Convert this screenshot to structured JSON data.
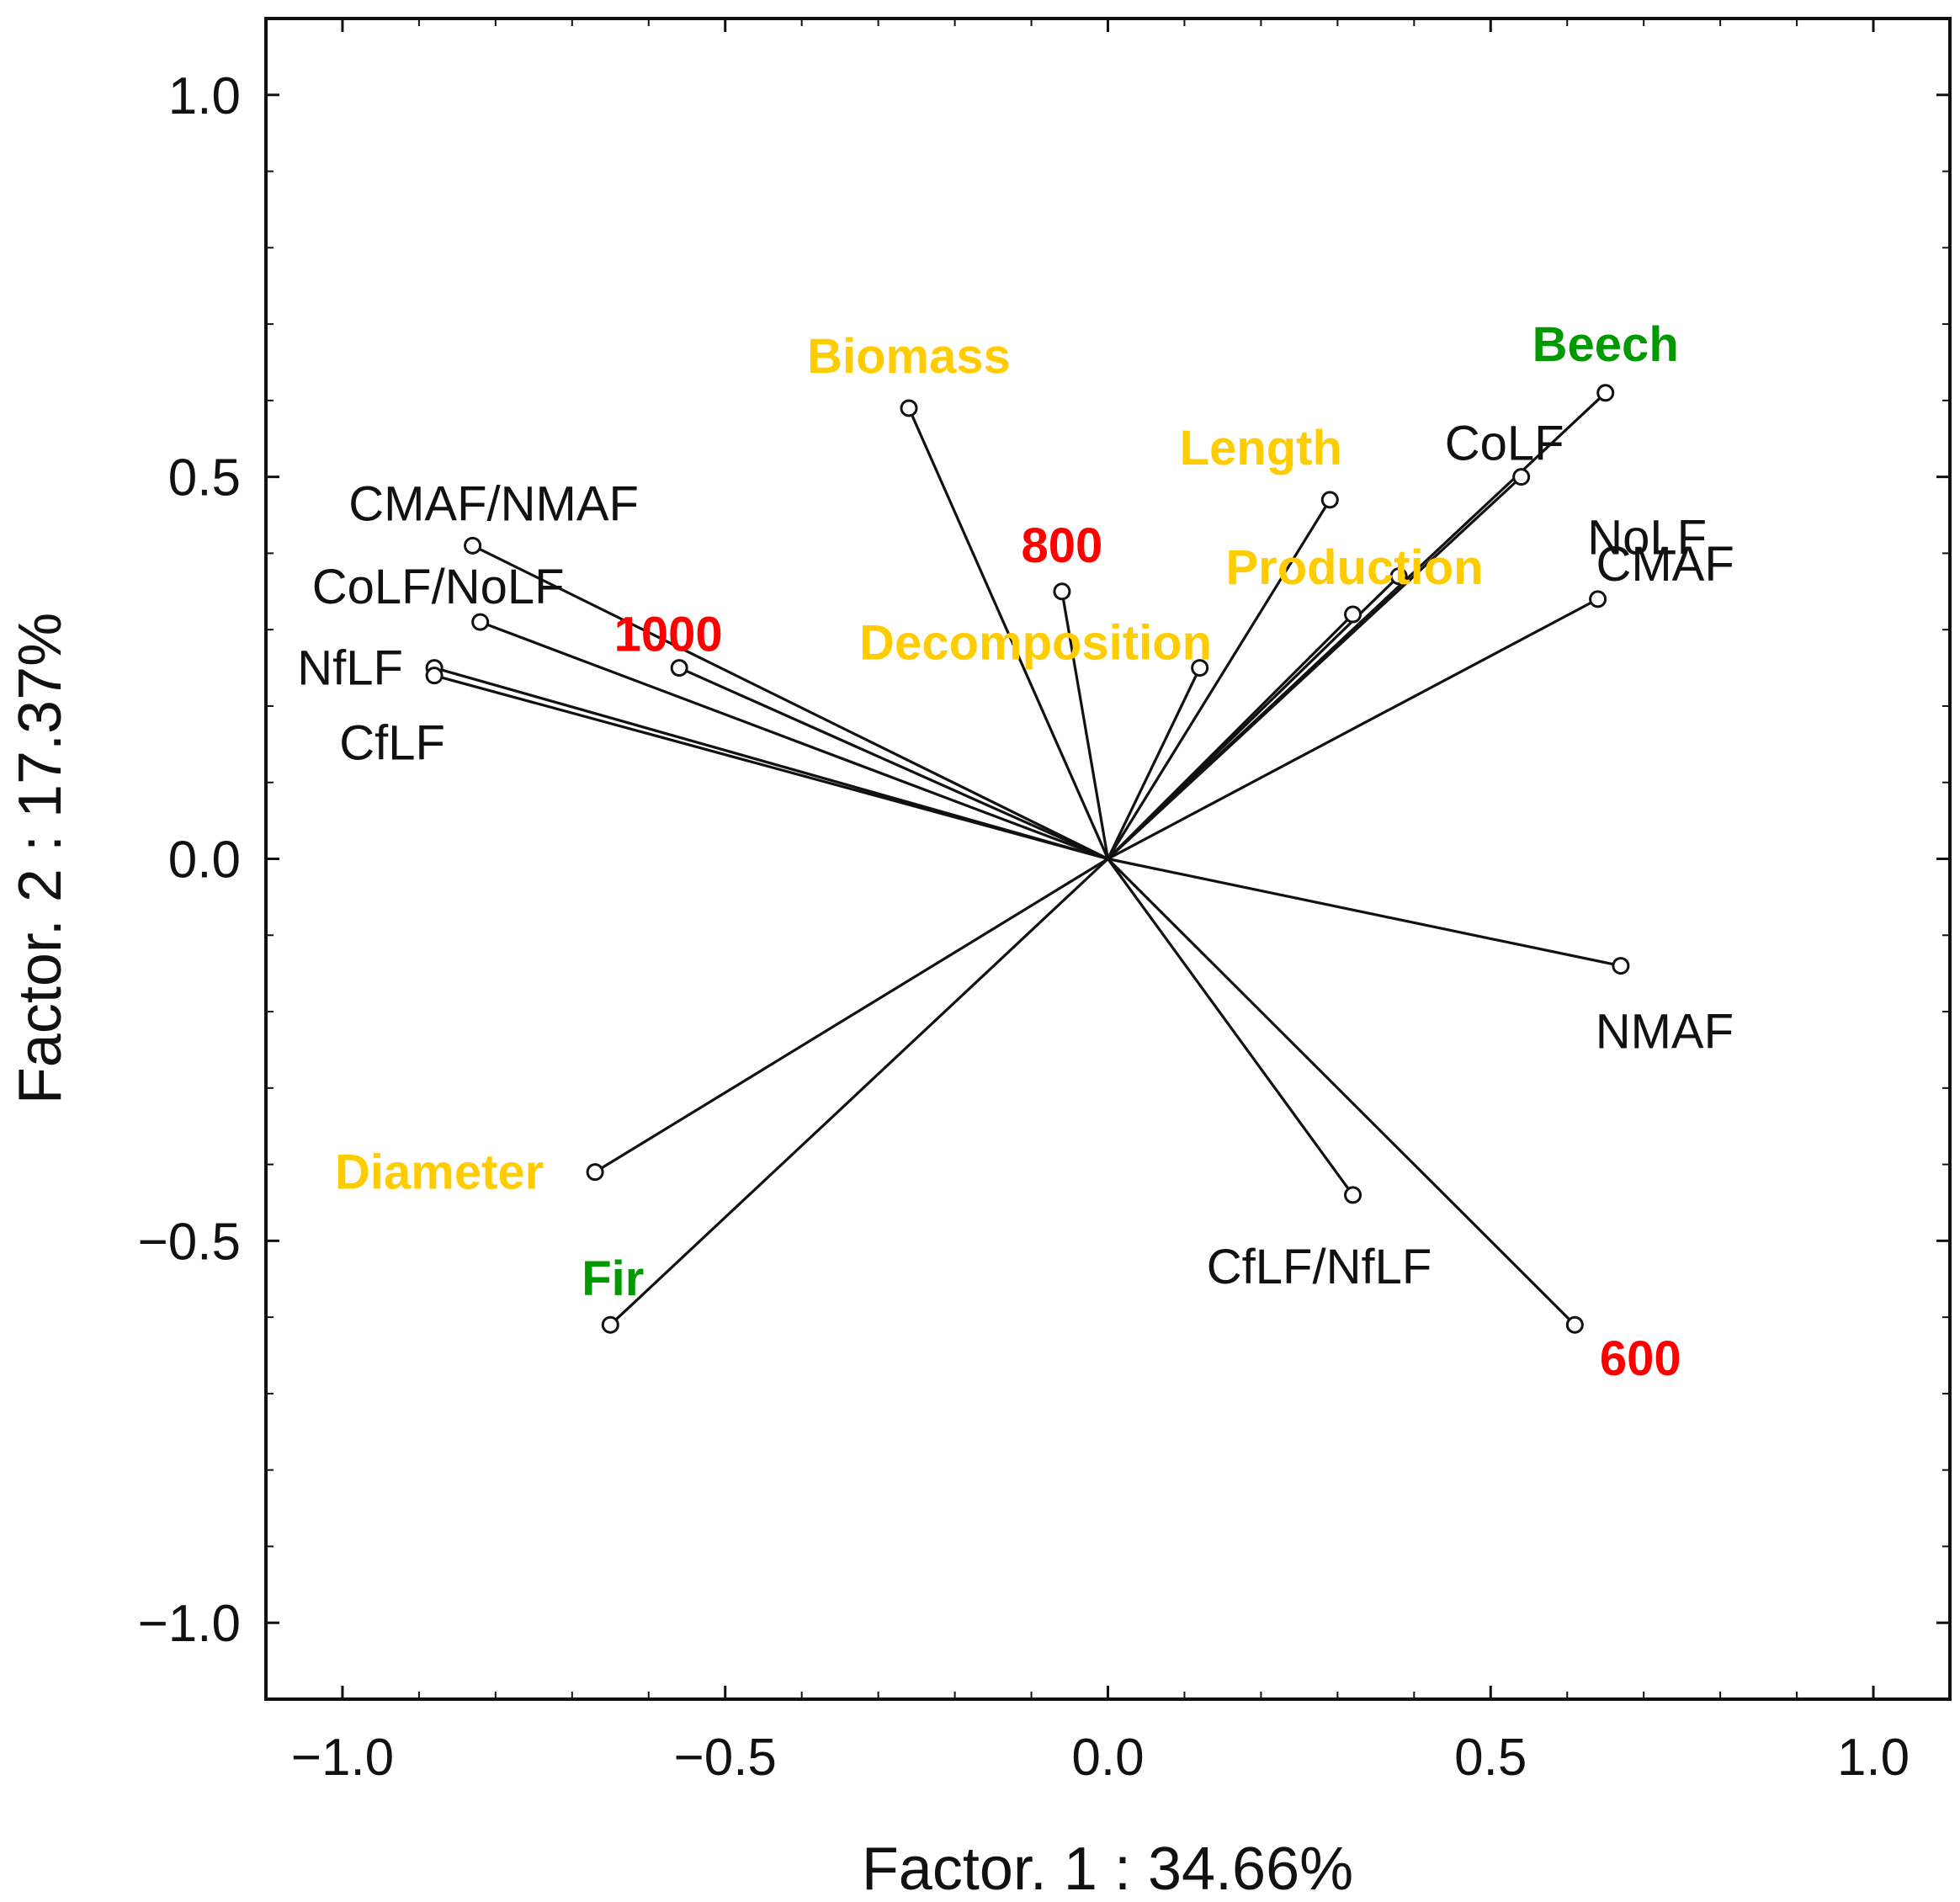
{
  "chart_data": {
    "type": "scatter",
    "subtype": "factor-loading-biplot",
    "title": "",
    "xlabel": "Factor. 1 : 34.66%",
    "ylabel": "Factor. 2 : 17.37%",
    "xlim": [
      -1.1,
      1.1
    ],
    "ylim": [
      -1.1,
      1.1
    ],
    "xticks": [
      -1.0,
      -0.5,
      0.0,
      0.5,
      1.0
    ],
    "yticks": [
      -1.0,
      -0.5,
      0.0,
      0.5,
      1.0
    ],
    "xtick_labels": [
      "−1.0",
      "−0.5",
      "0.0",
      "0.5",
      "1.0"
    ],
    "ytick_labels": [
      "−1.0",
      "−0.5",
      "0.0",
      "0.5",
      "1.0"
    ],
    "grid": false,
    "origin": [
      0,
      0
    ],
    "colors": {
      "variable": "#ffcc00",
      "altitude": "#ff0000",
      "species": "#009900",
      "group": "#111111"
    },
    "points": [
      {
        "id": "biomass",
        "label": "Biomass",
        "x": -0.26,
        "y": 0.59,
        "category": "variable"
      },
      {
        "id": "length",
        "label": "Length",
        "x": 0.29,
        "y": 0.47,
        "category": "variable"
      },
      {
        "id": "production",
        "label": "Production",
        "x": 0.32,
        "y": 0.32,
        "category": "variable"
      },
      {
        "id": "decomposition",
        "label": "Decomposition",
        "x": 0.12,
        "y": 0.25,
        "category": "variable"
      },
      {
        "id": "diameter",
        "label": "Diameter",
        "x": -0.67,
        "y": -0.41,
        "category": "variable"
      },
      {
        "id": "alt-800",
        "label": "800",
        "x": -0.06,
        "y": 0.35,
        "category": "altitude"
      },
      {
        "id": "alt-1000",
        "label": "1000",
        "x": -0.56,
        "y": 0.25,
        "category": "altitude"
      },
      {
        "id": "alt-600",
        "label": "600",
        "x": 0.61,
        "y": -0.61,
        "category": "altitude"
      },
      {
        "id": "beech",
        "label": "Beech",
        "x": 0.65,
        "y": 0.61,
        "category": "species"
      },
      {
        "id": "fir",
        "label": "Fir",
        "x": -0.65,
        "y": -0.61,
        "category": "species"
      },
      {
        "id": "colf",
        "label": "CoLF",
        "x": 0.54,
        "y": 0.5,
        "category": "group"
      },
      {
        "id": "nolf",
        "label": "NoLF",
        "x": 0.38,
        "y": 0.37,
        "category": "group"
      },
      {
        "id": "cmaf",
        "label": "CMAF",
        "x": 0.64,
        "y": 0.34,
        "category": "group"
      },
      {
        "id": "nmaf",
        "label": "NMAF",
        "x": 0.67,
        "y": -0.14,
        "category": "group"
      },
      {
        "id": "cflf-nflf",
        "label": "CfLF/NfLF",
        "x": 0.32,
        "y": -0.44,
        "category": "group"
      },
      {
        "id": "cmaf-nmaf",
        "label": "CMAF/NMAF",
        "x": -0.83,
        "y": 0.41,
        "category": "group"
      },
      {
        "id": "colf-nolf",
        "label": "CoLF/NoLF",
        "x": -0.82,
        "y": 0.31,
        "category": "group"
      },
      {
        "id": "nflf",
        "label": "NfLF",
        "x": -0.88,
        "y": 0.25,
        "category": "group"
      },
      {
        "id": "cflf",
        "label": "CfLF",
        "x": -0.88,
        "y": 0.24,
        "category": "group"
      }
    ]
  }
}
